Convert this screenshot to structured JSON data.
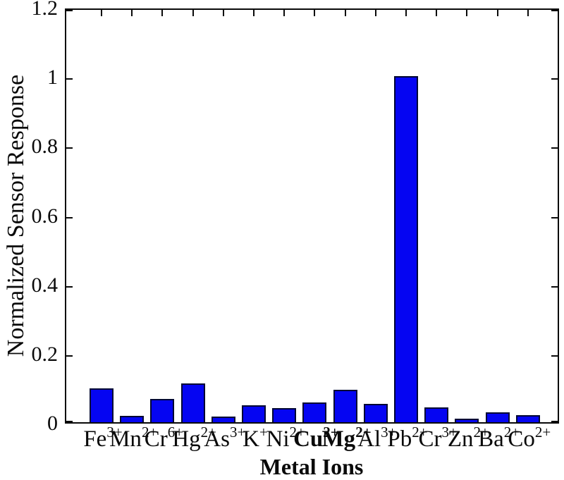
{
  "figure": {
    "background_color": "#ffffff",
    "bar_fill_color": "#0505f2",
    "bar_edge_color": "#010733",
    "axis_color": "#0a0a0a",
    "text_color": "#0a0a0a"
  },
  "chart_data": {
    "type": "bar",
    "title": "",
    "xlabel": "Metal Ions",
    "ylabel": "Normalized Sensor Response",
    "ylim": [
      0,
      1.2
    ],
    "yticks": [
      0,
      0.2,
      0.4,
      0.6,
      0.8,
      1,
      1.2
    ],
    "ytick_labels": [
      "0",
      "0.2",
      "0.4",
      "0.6",
      "0.8",
      "1",
      "1.2"
    ],
    "grid": false,
    "legend": null,
    "box": true,
    "categories": [
      "Fe3+",
      "Mn2+",
      "Cr6+",
      "Hg2+",
      "As3+",
      "K+",
      "Ni2+",
      "Cu2+",
      "Mg2+",
      "Al3+",
      "Pb2+",
      "Cr3+",
      "Zn2+",
      "Ba2+",
      "Co2+"
    ],
    "ions": [
      {
        "symbol": "Fe",
        "charge": "3+",
        "bold": false
      },
      {
        "symbol": "Mn",
        "charge": "2+",
        "bold": false
      },
      {
        "symbol": "Cr",
        "charge": "6+",
        "bold": false
      },
      {
        "symbol": "Hg",
        "charge": "2+",
        "bold": false
      },
      {
        "symbol": "As",
        "charge": "3+",
        "bold": false
      },
      {
        "symbol": "K",
        "charge": "+",
        "bold": false
      },
      {
        "symbol": "Ni",
        "charge": "2+",
        "bold": false
      },
      {
        "symbol": "Cu",
        "charge": "2+",
        "bold": true
      },
      {
        "symbol": "Mg",
        "charge": "2+",
        "bold": true
      },
      {
        "symbol": "Al",
        "charge": "3+",
        "bold": false
      },
      {
        "symbol": "Pb",
        "charge": "2+",
        "bold": false
      },
      {
        "symbol": "Cr",
        "charge": "3+",
        "bold": false
      },
      {
        "symbol": "Zn",
        "charge": "2+",
        "bold": false
      },
      {
        "symbol": "Ba",
        "charge": "2+",
        "bold": false
      },
      {
        "symbol": "Co",
        "charge": "2+",
        "bold": false
      }
    ],
    "values": [
      0.098,
      0.018,
      0.068,
      0.112,
      0.017,
      0.048,
      0.041,
      0.058,
      0.094,
      0.053,
      1.0,
      0.043,
      0.01,
      0.029,
      0.02
    ]
  }
}
